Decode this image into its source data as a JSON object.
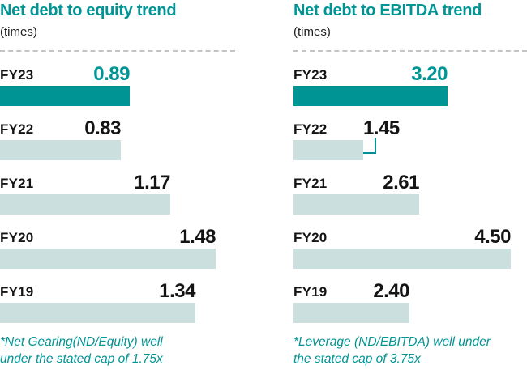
{
  "chart_data": [
    {
      "type": "bar",
      "title": "Net debt to equity trend",
      "subtitle": "(times)",
      "categories": [
        "FY23",
        "FY22",
        "FY21",
        "FY20",
        "FY19"
      ],
      "values": [
        0.89,
        0.83,
        1.17,
        1.48,
        1.34
      ],
      "value_labels": [
        "0.89",
        "0.83",
        "1.17",
        "1.48",
        "1.34"
      ],
      "highlight_index": 0,
      "xlim": [
        0,
        1.6
      ],
      "orientation": "horizontal",
      "grid": "off",
      "footnote": "*Net Gearing(ND/Equity) well under the stated cap of 1.75x",
      "footnote_lines": [
        "*Net Gearing(ND/Equity) well",
        "under the stated cap of 1.75x"
      ],
      "colors": {
        "highlight_bar": "#009494",
        "bar": "#cbdfdf",
        "highlight_value": "#009494",
        "value": "#141414",
        "title": "#009494",
        "footnote": "#009494"
      }
    },
    {
      "type": "bar",
      "title": "Net debt to EBITDA trend",
      "subtitle": "(times)",
      "categories": [
        "FY23",
        "FY22",
        "FY21",
        "FY20",
        "FY19"
      ],
      "values": [
        3.2,
        1.45,
        2.61,
        4.5,
        2.4
      ],
      "value_labels": [
        "3.20",
        "1.45",
        "2.61",
        "4.50",
        "2.40"
      ],
      "highlight_index": 0,
      "callout_index": 1,
      "xlim": [
        0,
        4.84
      ],
      "orientation": "horizontal",
      "grid": "off",
      "footnote": "*Leverage (ND/EBITDA) well under the stated cap of 3.75x",
      "footnote_lines": [
        "*Leverage (ND/EBITDA) well under",
        "the stated cap of 3.75x"
      ],
      "colors": {
        "highlight_bar": "#009494",
        "bar": "#cbdfdf",
        "highlight_value": "#009494",
        "value": "#141414",
        "title": "#009494",
        "footnote": "#009494"
      }
    }
  ]
}
